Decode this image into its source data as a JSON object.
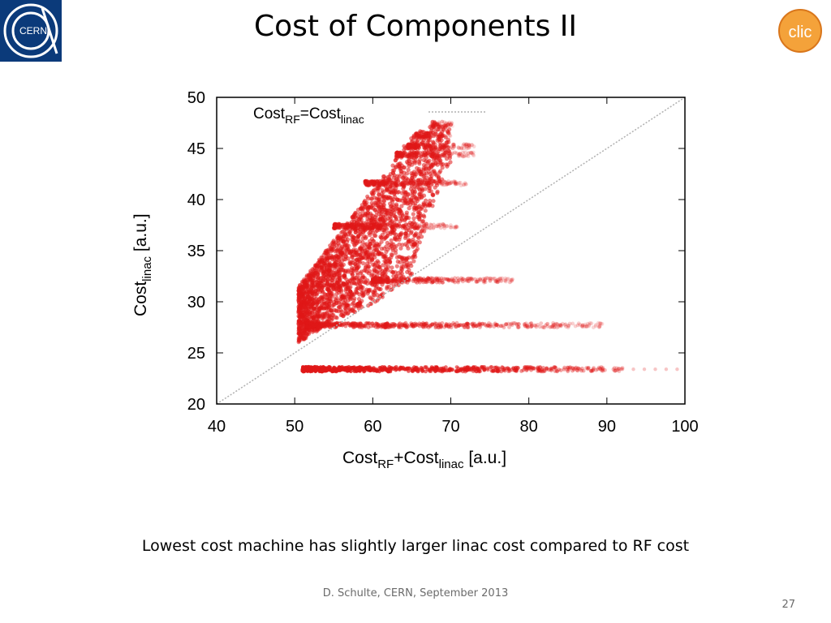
{
  "slide": {
    "title": "Cost of Components II",
    "caption": "Lowest cost machine has slightly larger linac cost compared to RF cost",
    "footer": "D. Schulte, CERN, September 2013",
    "page_number": "27",
    "logos": {
      "left": {
        "icon": "cern-logo",
        "text": "CERN",
        "color": "#0b3a7a"
      },
      "right": {
        "icon": "clic-logo",
        "text": "clic",
        "color": "#f4a23a"
      }
    }
  },
  "chart_data": {
    "type": "scatter",
    "xlabel": {
      "main": "Cost",
      "sub1": "RF",
      "mid": "+Cost",
      "sub2": "linac",
      "tail": " [a.u.]"
    },
    "ylabel": {
      "main": "Cost",
      "sub": "linac",
      "tail": " [a.u.]"
    },
    "xlim": [
      40,
      100
    ],
    "ylim": [
      20,
      50
    ],
    "xticks": [
      40,
      50,
      60,
      70,
      80,
      90,
      100
    ],
    "yticks": [
      20,
      25,
      30,
      35,
      40,
      45,
      50
    ],
    "grid": false,
    "legend_position": "top-left",
    "point_color": "#e01818",
    "reference_line": {
      "label": {
        "main": "Cost",
        "sub1": "RF",
        "mid": "=Cost",
        "sub2": "linac"
      },
      "x": [
        40,
        100
      ],
      "y": [
        20,
        50
      ],
      "color": "#b0b0b0"
    },
    "bands": [
      {
        "y": 23.4,
        "x": [
          51.0,
          92.0
        ],
        "tail_x": 100.0,
        "density": "dense"
      },
      {
        "y": 27.7,
        "x": [
          51.5,
          89.5
        ],
        "density": "medium"
      },
      {
        "y": 32.1,
        "x": [
          60.0,
          78.0
        ],
        "density": "medium"
      },
      {
        "y": 37.4,
        "x": [
          55.0,
          71.0
        ],
        "density": "medium"
      },
      {
        "y": 41.6,
        "x": [
          59.0,
          72.0
        ],
        "density": "medium"
      },
      {
        "y": 44.4,
        "x": [
          63.0,
          73.0
        ],
        "density": "medium"
      },
      {
        "y": 45.2,
        "x": [
          64.5,
          73.0
        ],
        "density": "medium"
      },
      {
        "y": 46.3,
        "x": [
          65.5,
          70.0
        ],
        "density": "medium"
      },
      {
        "y": 47.4,
        "x": [
          67.5,
          70.5
        ],
        "density": "sparse"
      }
    ],
    "cloud": {
      "lower_edge": [
        [
          50.5,
          26.0
        ],
        [
          55.0,
          28.0
        ],
        [
          60.0,
          29.8
        ],
        [
          65.0,
          32.5
        ],
        [
          69.0,
          34.5
        ]
      ],
      "upper_edge": [
        [
          50.5,
          31.5
        ],
        [
          53.0,
          34.0
        ],
        [
          57.0,
          38.0
        ],
        [
          61.0,
          42.0
        ],
        [
          65.0,
          46.3
        ],
        [
          68.0,
          47.4
        ]
      ],
      "right_edge": [
        [
          65.0,
          32.5
        ],
        [
          66.0,
          35.5
        ],
        [
          68.0,
          40.0
        ],
        [
          70.0,
          43.5
        ],
        [
          70.0,
          46.3
        ]
      ]
    }
  }
}
